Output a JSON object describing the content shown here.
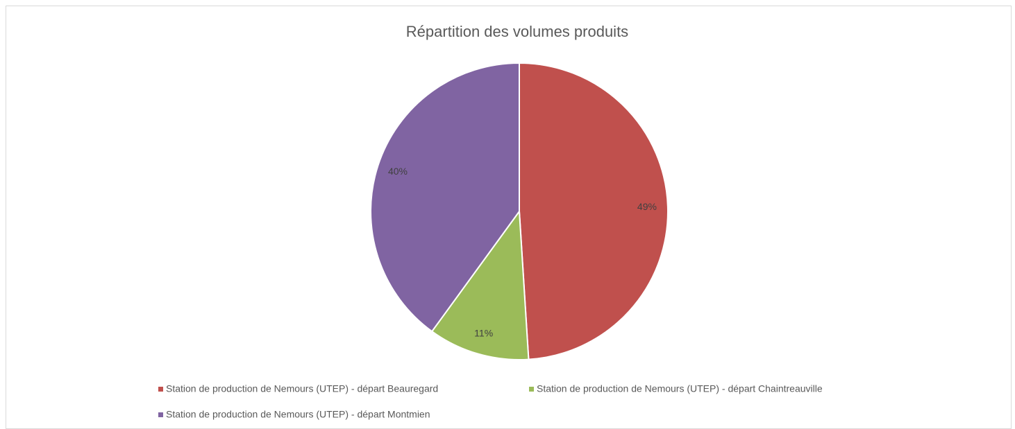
{
  "chart_data": {
    "type": "pie",
    "title": "Répartition des volumes produits",
    "categories": [
      "Station de production de Nemours (UTEP) - départ Beauregard",
      "Station de production de Nemours (UTEP) - départ Chaintreauville",
      "Station de production de Nemours (UTEP) - départ Montmien"
    ],
    "values": [
      49,
      11,
      40
    ],
    "value_labels": [
      "49%",
      "11%",
      "40%"
    ],
    "colors": [
      "#c0504d",
      "#9bbb59",
      "#8064a2"
    ]
  }
}
